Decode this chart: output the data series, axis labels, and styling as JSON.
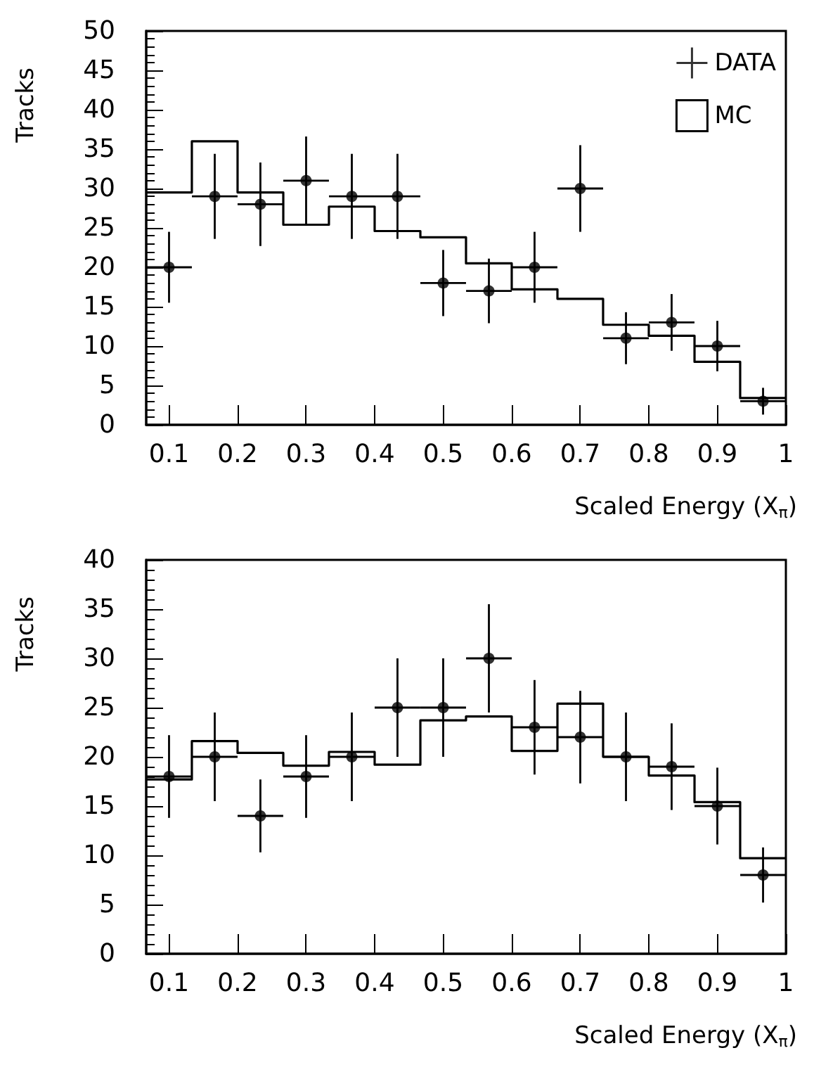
{
  "chart_data": [
    {
      "type": "histogram",
      "xlabel": "Scaled Energy (X$_{π}$)",
      "ylabel": "Tracks",
      "bins": [
        0.0667,
        0.1333,
        0.2,
        0.2667,
        0.3333,
        0.4,
        0.4667,
        0.5333,
        0.6,
        0.6667,
        0.7333,
        0.8,
        0.8667,
        0.9333,
        1
      ],
      "xlim": [
        0.0667,
        1
      ],
      "xticks": [
        0.1,
        0.2,
        0.3,
        0.4,
        0.5,
        0.6,
        0.7,
        0.8,
        0.9,
        1
      ],
      "ylim": [
        0,
        50
      ],
      "yticks": [
        0,
        5,
        10,
        15,
        20,
        25,
        30,
        35,
        40,
        45,
        50
      ],
      "legend": "top right",
      "grid": false,
      "series": [
        {
          "name": "DATA",
          "type": "scatter",
          "color": "#000000",
          "marker": "circle",
          "x": [
            0.1,
            0.1667,
            0.2333,
            0.3,
            0.3667,
            0.4333,
            0.5,
            0.5667,
            0.6333,
            0.7,
            0.7667,
            0.8333,
            0.9,
            0.9667
          ],
          "values": [
            20,
            29,
            28,
            31,
            29,
            29,
            18,
            17,
            20,
            30,
            11,
            13,
            10,
            3
          ],
          "errors": [
            4.5,
            5.4,
            5.3,
            5.6,
            5.4,
            5.4,
            4.2,
            4.1,
            4.5,
            5.5,
            3.3,
            3.6,
            3.2,
            1.7
          ],
          "xerrors": [
            0.0333,
            0.0333,
            0.0333,
            0.0333,
            0.0333,
            0.0333,
            0.0333,
            0.0333,
            0.0333,
            0.0333,
            0.0333,
            0.0333,
            0.0333,
            0.0333
          ]
        },
        {
          "name": "MC",
          "color": "#000000",
          "values": [
            29.5,
            36,
            29.5,
            25.4,
            27.7,
            24.6,
            23.8,
            20.5,
            17.2,
            16,
            12.7,
            11.3,
            8,
            3.4
          ]
        }
      ]
    },
    {
      "type": "histogram",
      "xlabel": "Scaled Energy (X$_{π}$)",
      "ylabel": "Tracks",
      "bins": [
        0.0667,
        0.1333,
        0.2,
        0.2667,
        0.3333,
        0.4,
        0.4667,
        0.5333,
        0.6,
        0.6667,
        0.7333,
        0.8,
        0.8667,
        0.9333,
        1
      ],
      "xlim": [
        0.0667,
        1
      ],
      "xticks": [
        0.1,
        0.2,
        0.3,
        0.4,
        0.5,
        0.6,
        0.7,
        0.8,
        0.9,
        1
      ],
      "ylim": [
        0,
        40
      ],
      "yticks": [
        0,
        5,
        10,
        15,
        20,
        25,
        30,
        35,
        40
      ],
      "legend": false,
      "grid": false,
      "series": [
        {
          "color": "#000000",
          "values": [
            17.7,
            21.6,
            20.4,
            19.1,
            20.5,
            19.2,
            23.7,
            24.1,
            20.6,
            25.4,
            20,
            18.1,
            15.4,
            9.7
          ]
        },
        {
          "type": "scatter",
          "color": "#000000",
          "marker": "circle",
          "x": [
            0.1,
            0.1667,
            0.2333,
            0.3,
            0.3667,
            0.4333,
            0.5,
            0.5667,
            0.6333,
            0.7,
            0.7667,
            0.8333,
            0.9,
            0.9667
          ],
          "values": [
            18,
            20,
            14,
            18,
            20,
            25,
            25,
            30,
            23,
            22,
            20,
            19,
            15,
            8
          ],
          "errors": [
            4.2,
            4.5,
            3.7,
            4.2,
            4.5,
            5,
            5,
            5.5,
            4.8,
            4.7,
            4.5,
            4.4,
            3.9,
            2.8
          ],
          "xerrors": [
            0.0333,
            0.0333,
            0.0333,
            0.0333,
            0.0333,
            0.0333,
            0.0333,
            0.0333,
            0.0333,
            0.0333,
            0.0333,
            0.0333,
            0.0333,
            0.0333
          ]
        }
      ]
    }
  ]
}
